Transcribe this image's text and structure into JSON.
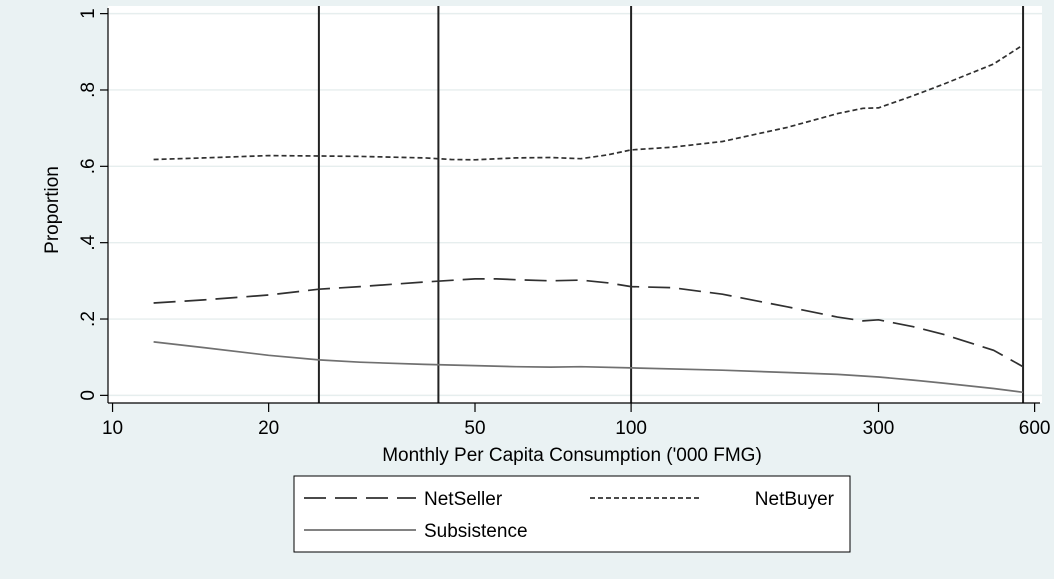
{
  "chart_data": {
    "type": "line",
    "xlabel": "Monthly Per Capita Consumption ('000 FMG)",
    "ylabel": "Proportion",
    "xscale": "log",
    "xlim": [
      9.8,
      620
    ],
    "ylim": [
      -0.02,
      1.02
    ],
    "x_ticks": [
      {
        "value": 10,
        "label": "10"
      },
      {
        "value": 20,
        "label": "20"
      },
      {
        "value": 50,
        "label": "50"
      },
      {
        "value": 100,
        "label": "100"
      },
      {
        "value": 300,
        "label": "300"
      },
      {
        "value": 600,
        "label": "600"
      }
    ],
    "y_ticks": [
      {
        "value": 0,
        "label": "0"
      },
      {
        "value": 0.2,
        "label": ".2"
      },
      {
        "value": 0.4,
        "label": ".4"
      },
      {
        "value": 0.6,
        "label": ".6"
      },
      {
        "value": 0.8,
        "label": ".8"
      },
      {
        "value": 1,
        "label": "1"
      }
    ],
    "grid": true,
    "vertical_lines": [
      25,
      42.5,
      100,
      570
    ],
    "legend_position": "bottom",
    "series": [
      {
        "name": "NetSeller",
        "style": "longdash",
        "color": "#303030",
        "x": [
          12,
          15,
          20,
          25,
          30,
          40,
          50,
          55,
          60,
          70,
          80,
          90,
          100,
          120,
          150,
          200,
          250,
          280,
          300,
          350,
          400,
          500,
          570
        ],
        "y": [
          0.242,
          0.25,
          0.263,
          0.278,
          0.285,
          0.297,
          0.305,
          0.305,
          0.303,
          0.3,
          0.302,
          0.295,
          0.285,
          0.282,
          0.265,
          0.232,
          0.205,
          0.195,
          0.198,
          0.18,
          0.16,
          0.118,
          0.075
        ]
      },
      {
        "name": "NetBuyer",
        "style": "shortdash",
        "color": "#303030",
        "x": [
          12,
          15,
          20,
          25,
          30,
          40,
          45,
          50,
          60,
          70,
          80,
          90,
          100,
          120,
          150,
          200,
          250,
          280,
          300,
          350,
          400,
          500,
          570
        ],
        "y": [
          0.618,
          0.622,
          0.628,
          0.627,
          0.626,
          0.622,
          0.618,
          0.617,
          0.622,
          0.623,
          0.62,
          0.63,
          0.643,
          0.65,
          0.665,
          0.702,
          0.738,
          0.752,
          0.753,
          0.785,
          0.815,
          0.868,
          0.918
        ]
      },
      {
        "name": "Subsistence",
        "style": "solid",
        "color": "#707070",
        "x": [
          12,
          15,
          20,
          25,
          30,
          40,
          50,
          60,
          70,
          80,
          100,
          150,
          200,
          250,
          300,
          350,
          400,
          500,
          570
        ],
        "y": [
          0.14,
          0.125,
          0.105,
          0.093,
          0.087,
          0.081,
          0.078,
          0.075,
          0.074,
          0.075,
          0.072,
          0.066,
          0.06,
          0.055,
          0.048,
          0.04,
          0.032,
          0.018,
          0.008
        ]
      }
    ]
  }
}
